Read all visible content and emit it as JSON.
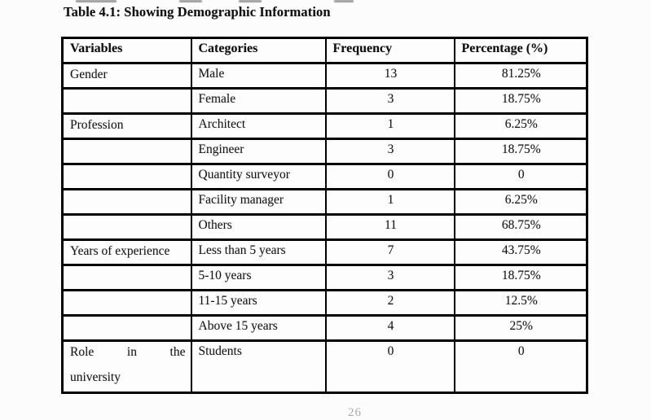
{
  "page": {
    "title": "Table 4.1: Showing Demographic Information",
    "page_number": "26"
  },
  "table": {
    "columns": [
      "Variables",
      "Categories",
      "Frequency",
      "Percentage (%)"
    ],
    "rows": [
      {
        "variable": [
          "Gender"
        ],
        "category": "Male",
        "frequency": "13",
        "percentage": "81.25%"
      },
      {
        "variable": [
          ""
        ],
        "category": "Female",
        "frequency": "3",
        "percentage": "18.75%"
      },
      {
        "variable": [
          "Profession"
        ],
        "category": "Architect",
        "frequency": "1",
        "percentage": "6.25%"
      },
      {
        "variable": [
          ""
        ],
        "category": "Engineer",
        "frequency": "3",
        "percentage": "18.75%"
      },
      {
        "variable": [
          ""
        ],
        "category": "Quantity surveyor",
        "frequency": "0",
        "percentage": "0"
      },
      {
        "variable": [
          ""
        ],
        "category": "Facility manager",
        "frequency": "1",
        "percentage": "6.25%"
      },
      {
        "variable": [
          ""
        ],
        "category": "Others",
        "frequency": "11",
        "percentage": "68.75%"
      },
      {
        "variable": [
          "Years of experience"
        ],
        "category": "Less than 5 years",
        "frequency": "7",
        "percentage": "43.75%"
      },
      {
        "variable": [
          ""
        ],
        "category": "5-10 years",
        "frequency": "3",
        "percentage": "18.75%"
      },
      {
        "variable": [
          ""
        ],
        "category": "11-15 years",
        "frequency": "2",
        "percentage": "12.5%"
      },
      {
        "variable": [
          ""
        ],
        "category": "Above 15 years",
        "frequency": "4",
        "percentage": "25%"
      },
      {
        "variable": [
          "Role in the",
          "university"
        ],
        "category": "Students",
        "frequency": "0",
        "percentage": "0",
        "tall": true
      }
    ]
  },
  "colors": {
    "border": "#000000",
    "text": "#161616",
    "background": "#fcfcfc",
    "page_number_gray": "#8f8f8f"
  }
}
